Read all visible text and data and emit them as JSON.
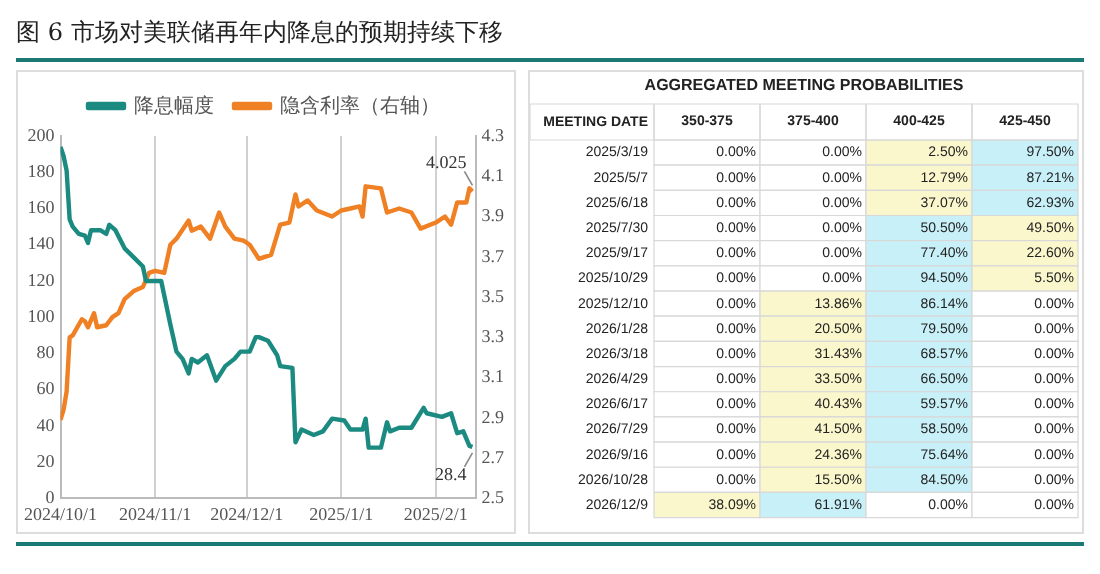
{
  "chart_data": [
    {
      "type": "line",
      "title": "图 6 市场对美联储再年内降息的预期持续下移",
      "legend": "top",
      "xlim": [
        "2024-10-01",
        "2025-02-14"
      ],
      "xticks": [
        {
          "value": "2024-10-01",
          "label": "2024/10/1"
        },
        {
          "value": "2024-11-01",
          "label": "2024/11/1"
        },
        {
          "value": "2024-12-01",
          "label": "2024/12/1"
        },
        {
          "value": "2025-01-01",
          "label": "2025/1/1"
        },
        {
          "value": "2025-02-01",
          "label": "2025/2/1"
        }
      ],
      "ylim": [
        0,
        200
      ],
      "yticks": [
        0,
        20,
        40,
        60,
        80,
        100,
        120,
        140,
        160,
        180,
        200
      ],
      "y2lim": [
        2.5,
        4.3
      ],
      "y2ticks": [
        2.5,
        2.7,
        2.9,
        3.1,
        3.3,
        3.5,
        3.7,
        3.9,
        4.1,
        4.3
      ],
      "series": [
        {
          "name": "降息幅度",
          "color": "#1b8a80",
          "x": [
            "2024-10-01",
            "2024-10-02",
            "2024-10-03",
            "2024-10-04",
            "2024-10-05",
            "2024-10-07",
            "2024-10-09",
            "2024-10-10",
            "2024-10-11",
            "2024-10-14",
            "2024-10-16",
            "2024-10-17",
            "2024-10-19",
            "2024-10-22",
            "2024-10-25",
            "2024-10-28",
            "2024-10-29",
            "2024-10-31",
            "2024-11-03",
            "2024-11-04",
            "2024-11-06",
            "2024-11-08",
            "2024-11-10",
            "2024-11-12",
            "2024-11-13",
            "2024-11-15",
            "2024-11-18",
            "2024-11-21",
            "2024-11-24",
            "2024-11-27",
            "2024-11-29",
            "2024-12-02",
            "2024-12-04",
            "2024-12-05",
            "2024-12-08",
            "2024-12-11",
            "2024-12-12",
            "2024-12-16",
            "2024-12-17",
            "2024-12-19",
            "2024-12-23",
            "2024-12-26",
            "2024-12-29",
            "2025-01-02",
            "2025-01-04",
            "2025-01-08",
            "2025-01-09",
            "2025-01-10",
            "2025-01-14",
            "2025-01-16",
            "2025-01-17",
            "2025-01-20",
            "2025-01-24",
            "2025-01-28",
            "2025-01-29",
            "2025-02-03",
            "2025-02-06",
            "2025-02-08",
            "2025-02-10",
            "2025-02-12",
            "2025-02-13"
          ],
          "values": [
            194,
            189,
            181,
            154,
            150,
            146,
            145,
            141,
            148,
            148,
            146,
            151,
            148,
            138,
            133,
            128,
            120,
            120,
            120,
            112,
            96,
            81,
            77,
            69,
            77,
            75,
            79,
            65,
            73,
            77,
            81,
            81,
            89,
            89,
            87,
            79,
            73,
            72,
            31,
            38,
            35,
            37,
            44,
            43,
            38,
            38,
            44,
            28,
            28,
            42,
            37,
            39,
            39,
            50,
            47,
            45,
            47,
            36,
            37,
            29,
            28.4
          ],
          "value_labels": [
            null,
            null,
            null,
            null,
            null,
            null,
            null,
            null,
            null,
            null,
            null,
            null,
            null,
            null,
            null,
            null,
            null,
            null,
            null,
            null,
            null,
            null,
            null,
            null,
            null,
            null,
            null,
            null,
            null,
            null,
            null,
            null,
            null,
            null,
            null,
            null,
            null,
            null,
            null,
            null,
            null,
            null,
            null,
            null,
            null,
            null,
            null,
            null,
            null,
            null,
            null,
            null,
            null,
            null,
            null,
            null,
            null,
            null,
            null,
            null,
            "28.4"
          ]
        },
        {
          "name": "隐含利率（右轴）",
          "color": "#f08024",
          "axis": "y2",
          "x": [
            "2024-10-01",
            "2024-10-02",
            "2024-10-03",
            "2024-10-04",
            "2024-10-05",
            "2024-10-08",
            "2024-10-09",
            "2024-10-10",
            "2024-10-12",
            "2024-10-13",
            "2024-10-16",
            "2024-10-18",
            "2024-10-20",
            "2024-10-22",
            "2024-10-25",
            "2024-10-28",
            "2024-10-30",
            "2024-11-01",
            "2024-11-04",
            "2024-11-06",
            "2024-11-08",
            "2024-11-12",
            "2024-11-13",
            "2024-11-16",
            "2024-11-19",
            "2024-11-22",
            "2024-11-24",
            "2024-11-27",
            "2024-11-30",
            "2024-12-02",
            "2024-12-05",
            "2024-12-09",
            "2024-12-12",
            "2024-12-15",
            "2024-12-17",
            "2024-12-18",
            "2024-12-21",
            "2024-12-24",
            "2024-12-29",
            "2025-01-01",
            "2025-01-04",
            "2025-01-07",
            "2025-01-08",
            "2025-01-09",
            "2025-01-14",
            "2025-01-16",
            "2025-01-20",
            "2025-01-24",
            "2025-01-27",
            "2025-02-01",
            "2025-02-04",
            "2025-02-06",
            "2025-02-08",
            "2025-02-11",
            "2025-02-12",
            "2025-02-13"
          ],
          "values": [
            2.89,
            2.94,
            3.03,
            3.3,
            3.31,
            3.39,
            3.38,
            3.35,
            3.42,
            3.35,
            3.36,
            3.4,
            3.42,
            3.49,
            3.53,
            3.55,
            3.62,
            3.63,
            3.62,
            3.76,
            3.79,
            3.88,
            3.83,
            3.85,
            3.79,
            3.92,
            3.85,
            3.79,
            3.78,
            3.76,
            3.69,
            3.71,
            3.86,
            3.87,
            4.01,
            3.95,
            3.98,
            3.93,
            3.9,
            3.93,
            3.94,
            3.95,
            3.9,
            4.05,
            4.04,
            3.92,
            3.94,
            3.92,
            3.84,
            3.87,
            3.9,
            3.86,
            3.97,
            3.97,
            4.04,
            4.025
          ],
          "value_labels": [
            null,
            null,
            null,
            null,
            null,
            null,
            null,
            null,
            null,
            null,
            null,
            null,
            null,
            null,
            null,
            null,
            null,
            null,
            null,
            null,
            null,
            null,
            null,
            null,
            null,
            null,
            null,
            null,
            null,
            null,
            null,
            null,
            null,
            null,
            null,
            null,
            null,
            null,
            null,
            null,
            null,
            null,
            null,
            null,
            null,
            null,
            null,
            null,
            null,
            null,
            null,
            null,
            null,
            null,
            null,
            "4.025"
          ]
        }
      ],
      "grid": "x"
    },
    {
      "type": "heatmap",
      "title": "AGGREGATED MEETING PROBABILITIES",
      "ylabel": "MEETING DATE",
      "categories": [
        "350-375",
        "375-400",
        "400-425",
        "425-450"
      ],
      "y_categories": [
        "2025/3/19",
        "2025/5/7",
        "2025/6/18",
        "2025/7/30",
        "2025/9/17",
        "2025/10/29",
        "2025/12/10",
        "2026/1/28",
        "2026/3/18",
        "2026/4/29",
        "2026/6/17",
        "2026/7/29",
        "2026/9/16",
        "2026/10/28",
        "2026/12/9"
      ],
      "cells": [
        [
          0,
          0,
          2.5,
          97.5
        ],
        [
          0,
          0,
          12.79,
          87.21
        ],
        [
          0,
          0,
          37.07,
          62.93
        ],
        [
          0,
          0,
          50.5,
          49.5
        ],
        [
          0,
          0,
          77.4,
          22.6
        ],
        [
          0,
          0,
          94.5,
          5.5
        ],
        [
          0,
          13.86,
          86.14,
          0
        ],
        [
          0,
          20.5,
          79.5,
          0
        ],
        [
          0,
          31.43,
          68.57,
          0
        ],
        [
          0,
          33.5,
          66.5,
          0
        ],
        [
          0,
          40.43,
          59.57,
          0
        ],
        [
          0,
          41.5,
          58.5,
          0
        ],
        [
          0,
          24.36,
          75.64,
          0
        ],
        [
          0,
          15.5,
          84.5,
          0
        ],
        [
          38.09,
          61.91,
          0,
          0
        ]
      ],
      "cell_labels": [
        [
          "0.00%",
          "0.00%",
          "2.50%",
          "97.50%"
        ],
        [
          "0.00%",
          "0.00%",
          "12.79%",
          "87.21%"
        ],
        [
          "0.00%",
          "0.00%",
          "37.07%",
          "62.93%"
        ],
        [
          "0.00%",
          "0.00%",
          "50.50%",
          "49.50%"
        ],
        [
          "0.00%",
          "0.00%",
          "77.40%",
          "22.60%"
        ],
        [
          "0.00%",
          "0.00%",
          "94.50%",
          "5.50%"
        ],
        [
          "0.00%",
          "13.86%",
          "86.14%",
          "0.00%"
        ],
        [
          "0.00%",
          "20.50%",
          "79.50%",
          "0.00%"
        ],
        [
          "0.00%",
          "31.43%",
          "68.57%",
          "0.00%"
        ],
        [
          "0.00%",
          "33.50%",
          "66.50%",
          "0.00%"
        ],
        [
          "0.00%",
          "40.43%",
          "59.57%",
          "0.00%"
        ],
        [
          "0.00%",
          "41.50%",
          "58.50%",
          "0.00%"
        ],
        [
          "0.00%",
          "24.36%",
          "75.64%",
          "0.00%"
        ],
        [
          "0.00%",
          "15.50%",
          "84.50%",
          "0.00%"
        ],
        [
          "38.09%",
          "61.91%",
          "0.00%",
          "0.00%"
        ]
      ]
    }
  ]
}
